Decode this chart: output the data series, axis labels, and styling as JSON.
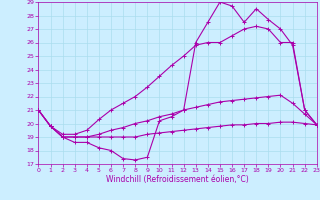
{
  "x_ticks": [
    0,
    1,
    2,
    3,
    4,
    5,
    6,
    7,
    8,
    9,
    10,
    11,
    12,
    13,
    14,
    15,
    16,
    17,
    18,
    19,
    20,
    21,
    22,
    23
  ],
  "xlabel": "Windchill (Refroidissement éolien,°C)",
  "ylim": [
    17,
    29
  ],
  "xlim": [
    0,
    23
  ],
  "yticks": [
    17,
    18,
    19,
    20,
    21,
    22,
    23,
    24,
    25,
    26,
    27,
    28,
    29
  ],
  "bg_color": "#cceeff",
  "grid_color": "#aaddee",
  "line_color": "#aa00aa",
  "lines": [
    [
      21.0,
      19.8,
      19.0,
      19.0,
      19.0,
      19.0,
      19.0,
      19.0,
      19.0,
      19.2,
      19.3,
      19.4,
      19.5,
      19.6,
      19.7,
      19.8,
      19.9,
      19.9,
      20.0,
      20.0,
      20.1,
      20.1,
      20.0,
      19.9
    ],
    [
      21.0,
      19.8,
      19.0,
      19.0,
      19.0,
      19.2,
      19.5,
      19.7,
      20.0,
      20.2,
      20.5,
      20.7,
      21.0,
      21.2,
      21.4,
      21.6,
      21.7,
      21.8,
      21.9,
      22.0,
      22.1,
      21.5,
      20.7,
      19.9
    ],
    [
      21.0,
      19.8,
      19.2,
      19.2,
      19.5,
      20.3,
      21.0,
      21.5,
      22.0,
      22.7,
      23.5,
      24.3,
      25.0,
      25.8,
      26.0,
      26.0,
      26.5,
      27.0,
      27.2,
      27.0,
      26.0,
      26.0,
      21.0,
      19.9
    ],
    [
      21.0,
      19.8,
      19.0,
      18.6,
      18.6,
      18.2,
      18.0,
      17.4,
      17.3,
      17.5,
      20.2,
      20.5,
      21.0,
      26.0,
      27.5,
      29.0,
      28.7,
      27.5,
      28.5,
      27.7,
      27.0,
      25.8,
      21.0,
      19.9
    ]
  ]
}
